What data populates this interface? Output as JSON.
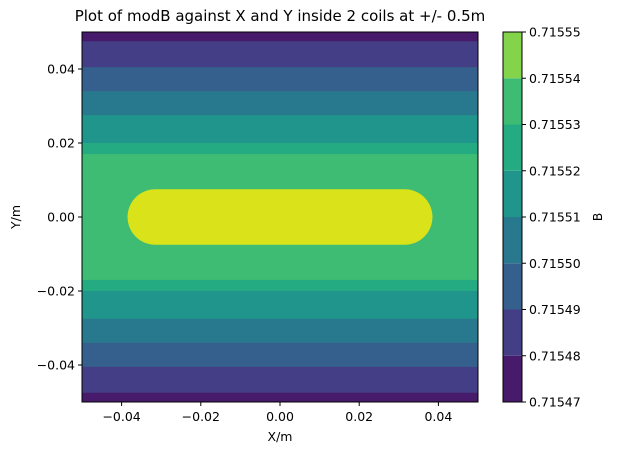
{
  "chart_data": {
    "type": "contour",
    "title": "Plot of modB against X and Y inside 2 coils at +/- 0.5m",
    "xlabel": "X/m",
    "ylabel": "Y/m",
    "colorbar_label": "B",
    "xlim": [
      -0.05,
      0.05
    ],
    "ylim": [
      -0.05,
      0.05
    ],
    "x_ticks": [
      -0.04,
      -0.02,
      0.0,
      0.02,
      0.04
    ],
    "x_tick_labels": [
      "−0.04",
      "−0.02",
      "0.00",
      "0.02",
      "0.04"
    ],
    "y_ticks": [
      -0.04,
      -0.02,
      0.0,
      0.02,
      0.04
    ],
    "y_tick_labels": [
      "−0.04",
      "−0.02",
      "0.00",
      "0.02",
      "0.04"
    ],
    "levels": [
      0.71547,
      0.71548,
      0.71549,
      0.7155,
      0.71551,
      0.71552,
      0.71553,
      0.71554,
      0.71555
    ],
    "level_labels": [
      "0.71547",
      "0.71548",
      "0.71549",
      "0.71550",
      "0.71551",
      "0.71552",
      "0.71553",
      "0.71554",
      "0.71555"
    ],
    "level_colors": [
      "#481a6c",
      "#433e85",
      "#35608d",
      "#29798e",
      "#1f958b",
      "#25ab82",
      "#3fbc73",
      "#84d44b",
      "#dae319"
    ],
    "contour_boundaries_y": [
      0.0475,
      0.0405,
      0.034,
      0.0275,
      0.02,
      0.017,
      0.0075
    ],
    "innermost_region": {
      "x_range": [
        -0.0385,
        0.0385
      ],
      "y_range": [
        -0.0075,
        0.0075
      ]
    },
    "grid": false,
    "colormap": "viridis"
  }
}
